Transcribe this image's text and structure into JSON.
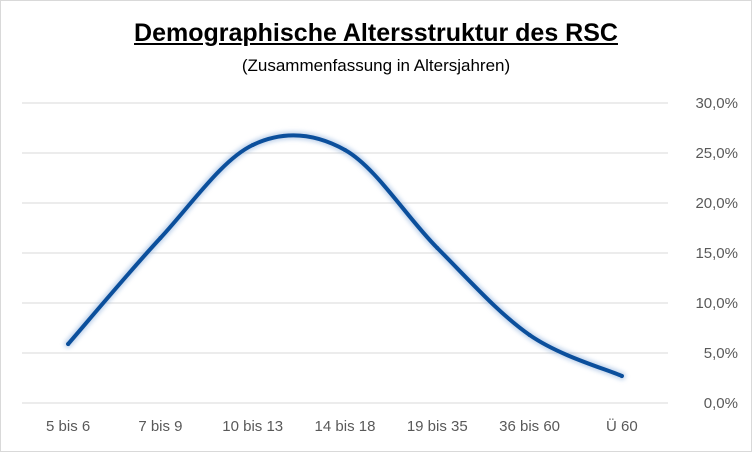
{
  "chart_data": {
    "type": "line",
    "title": "Demographische Altersstruktur des RSC",
    "subtitle": "(Zusammenfassung in Altersjahren)",
    "categories": [
      "5 bis 6",
      "7 bis 9",
      "10 bis 13",
      "14 bis 18",
      "19 bis 35",
      "36 bis 60",
      "Ü 60"
    ],
    "series": [
      {
        "values": [
          5.9,
          16.5,
          25.8,
          25.3,
          15.5,
          6.8,
          2.7
        ]
      }
    ],
    "y_ticks": [
      "0,0%",
      "5,0%",
      "10,0%",
      "15,0%",
      "20,0%",
      "25,0%",
      "30,0%"
    ],
    "ylim": [
      0,
      30
    ],
    "y_axis_position": "right",
    "smooth": true,
    "grid": true,
    "legend": "none",
    "colors": {
      "line": "#0b4f9c",
      "grid": "#d9d9d9"
    }
  }
}
